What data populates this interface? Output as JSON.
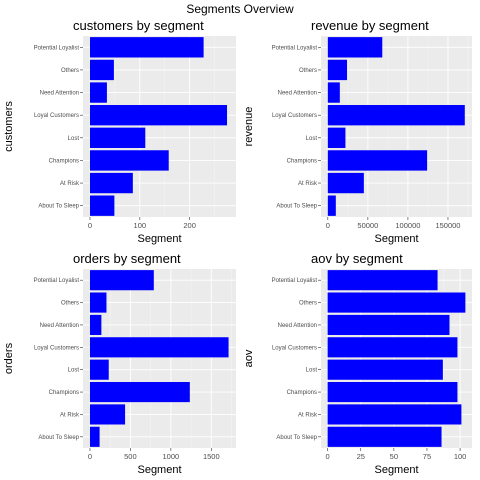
{
  "page": {
    "title": "Segments Overview"
  },
  "style": {
    "bar_color": "#0000ff",
    "panel_bg": "#ebebeb",
    "grid_color": "#ffffff"
  },
  "chart_data": [
    {
      "type": "bar",
      "orientation": "horizontal",
      "title": "customers by segment",
      "xlabel": "Segment",
      "ylabel": "customers",
      "categories": [
        "About To Sleep",
        "At Risk",
        "Champions",
        "Lost",
        "Loyal Customers",
        "Need Attention",
        "Others",
        "Potential Loyalist"
      ],
      "values": [
        49,
        86,
        158,
        111,
        275,
        34,
        48,
        228
      ],
      "xlim": [
        -14,
        293
      ],
      "xticks": [
        0,
        100,
        200
      ],
      "xtick_labels": [
        "0",
        "100",
        "200"
      ],
      "grid": true
    },
    {
      "type": "bar",
      "orientation": "horizontal",
      "title": "revenue by segment",
      "xlabel": "Segment",
      "ylabel": "revenue",
      "categories": [
        "About To Sleep",
        "At Risk",
        "Champions",
        "Lost",
        "Loyal Customers",
        "Need Attention",
        "Others",
        "Potential Loyalist"
      ],
      "values": [
        10000,
        45000,
        124000,
        22000,
        171000,
        15000,
        24000,
        68000
      ],
      "xlim": [
        -8500,
        180000
      ],
      "xticks": [
        0,
        50000,
        100000,
        150000
      ],
      "xtick_labels": [
        "0",
        "50000",
        "100000",
        "150000"
      ],
      "grid": true
    },
    {
      "type": "bar",
      "orientation": "horizontal",
      "title": "orders by segment",
      "xlabel": "Segment",
      "ylabel": "orders",
      "categories": [
        "About To Sleep",
        "At Risk",
        "Champions",
        "Lost",
        "Loyal Customers",
        "Need Attention",
        "Others",
        "Potential Loyalist"
      ],
      "values": [
        119,
        434,
        1234,
        232,
        1713,
        141,
        204,
        789
      ],
      "xlim": [
        -86,
        1805
      ],
      "xticks": [
        0,
        500,
        1000,
        1500
      ],
      "xtick_labels": [
        "0",
        "500",
        "1000",
        "1500"
      ],
      "grid": true
    },
    {
      "type": "bar",
      "orientation": "horizontal",
      "title": "aov by segment",
      "xlabel": "Segment",
      "ylabel": "aov",
      "categories": [
        "About To Sleep",
        "At Risk",
        "Champions",
        "Lost",
        "Loyal Customers",
        "Need Attention",
        "Others",
        "Potential Loyalist"
      ],
      "values": [
        86,
        101,
        98,
        87,
        98,
        92,
        104,
        83
      ],
      "xlim": [
        -5,
        109
      ],
      "xticks": [
        0,
        25,
        50,
        75,
        100
      ],
      "xtick_labels": [
        "0",
        "25",
        "50",
        "75",
        "100"
      ],
      "grid": true
    }
  ]
}
